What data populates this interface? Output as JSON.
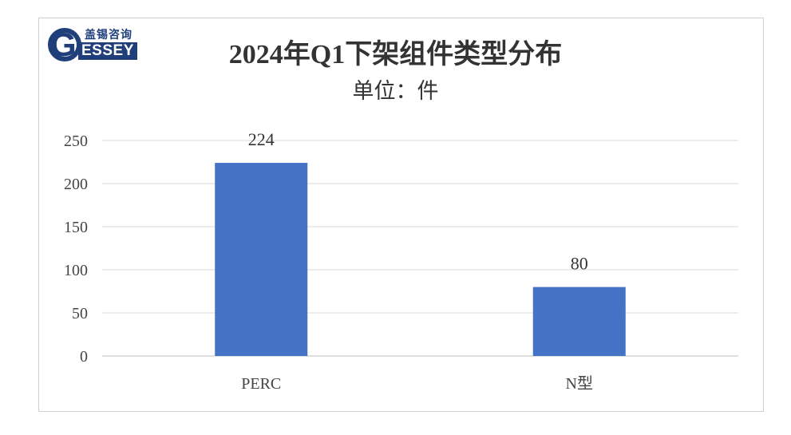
{
  "chart_data": {
    "type": "bar",
    "title": "2024年Q1下架组件类型分布",
    "subtitle": "单位：件",
    "categories": [
      "PERC",
      "N型"
    ],
    "values": [
      224,
      80
    ],
    "data_labels": [
      "224",
      "80"
    ],
    "yticks": [
      "0",
      "50",
      "100",
      "150",
      "200",
      "250"
    ],
    "ylim": [
      0,
      250
    ],
    "grid": true,
    "legend": "none",
    "bar_color": "#4472c4",
    "xlabel": "",
    "ylabel": ""
  },
  "logo": {
    "letter": "G",
    "text_cn": "盖锡咨询",
    "text_en": "ESSEY"
  }
}
